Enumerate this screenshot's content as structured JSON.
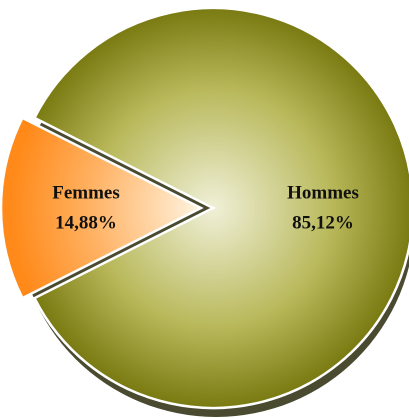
{
  "chart_data": {
    "type": "pie",
    "categories": [
      "Hommes",
      "Femmes"
    ],
    "values": [
      85.12,
      14.88
    ],
    "value_labels": [
      "85,12%",
      "14,88%"
    ],
    "colors": [
      "#8a8a1e",
      "#ff9933"
    ]
  }
}
